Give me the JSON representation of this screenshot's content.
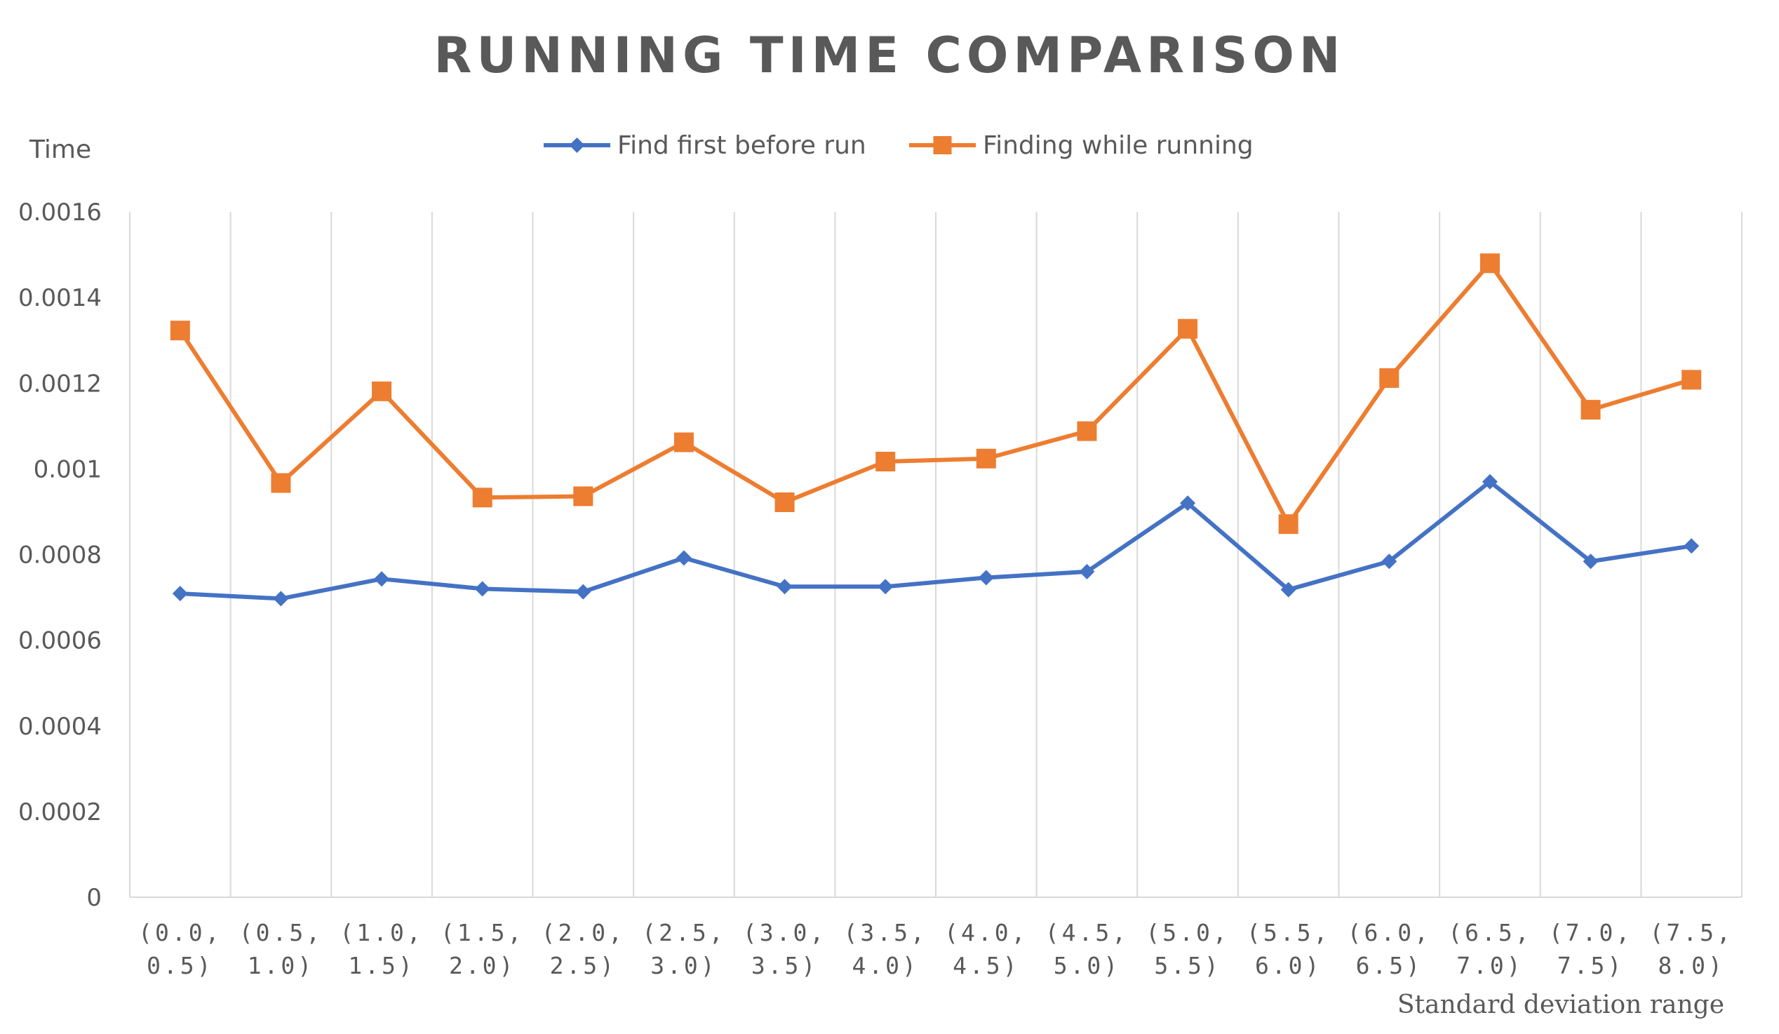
{
  "chart_data": {
    "type": "line",
    "title": "RUNNING TIME COMPARISON",
    "ylabel": "Time",
    "xlabel": "Standard deviation range",
    "ylim": [
      0,
      0.0016
    ],
    "yticks": [
      "0",
      "0.0002",
      "0.0004",
      "0.0006",
      "0.0008",
      "0.001",
      "0.0012",
      "0.0014",
      "0.0016"
    ],
    "ytick_values": [
      0,
      0.0002,
      0.0004,
      0.0006,
      0.0008,
      0.001,
      0.0012,
      0.0014,
      0.0016
    ],
    "categories": [
      [
        "(0.0,",
        "0.5)"
      ],
      [
        "(0.5,",
        "1.0)"
      ],
      [
        "(1.0,",
        "1.5)"
      ],
      [
        "(1.5,",
        "2.0)"
      ],
      [
        "(2.0,",
        "2.5)"
      ],
      [
        "(2.5,",
        "3.0)"
      ],
      [
        "(3.0,",
        "3.5)"
      ],
      [
        "(3.5,",
        "4.0)"
      ],
      [
        "(4.0,",
        "4.5)"
      ],
      [
        "(4.5,",
        "5.0)"
      ],
      [
        "(5.0,",
        "5.5)"
      ],
      [
        "(5.5,",
        "6.0)"
      ],
      [
        "(6.0,",
        "6.5)"
      ],
      [
        "(6.5,",
        "7.0)"
      ],
      [
        "(7.0,",
        "7.5)"
      ],
      [
        "(7.5,",
        "8.0)"
      ]
    ],
    "series": [
      {
        "name": "Find first before run",
        "color": "#4472C4",
        "marker": "diamond",
        "values": [
          0.000709,
          0.000697,
          0.000743,
          0.00072,
          0.000713,
          0.000792,
          0.000725,
          0.000725,
          0.000746,
          0.00076,
          0.00092,
          0.000718,
          0.000784,
          0.00097,
          0.000784,
          0.00082
        ]
      },
      {
        "name": "Finding while running",
        "color": "#ED7D31",
        "marker": "square",
        "values": [
          0.001323,
          0.000967,
          0.001181,
          0.000933,
          0.000936,
          0.001062,
          0.000922,
          0.001017,
          0.001024,
          0.001088,
          0.001327,
          0.000871,
          0.001212,
          0.00148,
          0.001138,
          0.001208
        ]
      }
    ],
    "grid": "vertical",
    "legend": "top"
  }
}
